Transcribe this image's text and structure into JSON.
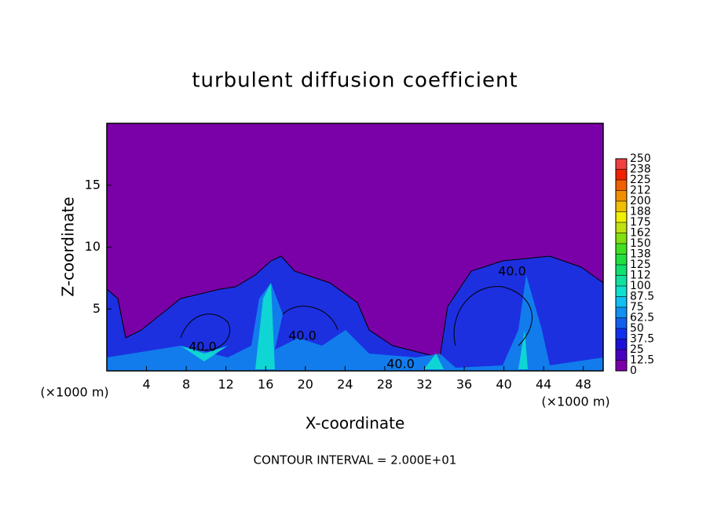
{
  "chart_data": {
    "type": "contour",
    "title": "turbulent diffusion coefficient",
    "xlabel": "X-coordinate",
    "ylabel": "Z-coordinate",
    "unit_label": "(×1000 m)",
    "contour_label": "40.0",
    "footer": "CONTOUR INTERVAL = 2.000E+01",
    "xlim": [
      0,
      50
    ],
    "xticks": [
      4,
      8,
      12,
      16,
      20,
      24,
      28,
      32,
      36,
      40,
      44,
      48
    ],
    "ylim": [
      0,
      20
    ],
    "yticks": [
      5,
      10,
      15
    ],
    "colorbar": {
      "levels": [
        0,
        12.5,
        25,
        37.5,
        50,
        62.5,
        75,
        87.5,
        100,
        {
          "value": 112.5,
          "label": "112"
        },
        125,
        {
          "value": 137.5,
          "label": "138"
        },
        150,
        {
          "value": 162.5,
          "label": "162"
        },
        175,
        {
          "value": 187.5,
          "label": "188"
        },
        200,
        {
          "value": 212.5,
          "label": "212"
        },
        225,
        {
          "value": 237.5,
          "label": "238"
        },
        250
      ],
      "colors": [
        "#7a00a8",
        "#4a00c0",
        "#1c10d8",
        "#1030f0",
        "#1060f0",
        "#1090f0",
        "#10c0f0",
        "#10e0d0",
        "#10e0a0",
        "#10e070",
        "#20e040",
        "#40e020",
        "#80e010",
        "#c0e010",
        "#f0f000",
        "#f0c000",
        "#f09000",
        "#f06000",
        "#f02000",
        "#f04040",
        "#f08080"
      ]
    }
  }
}
